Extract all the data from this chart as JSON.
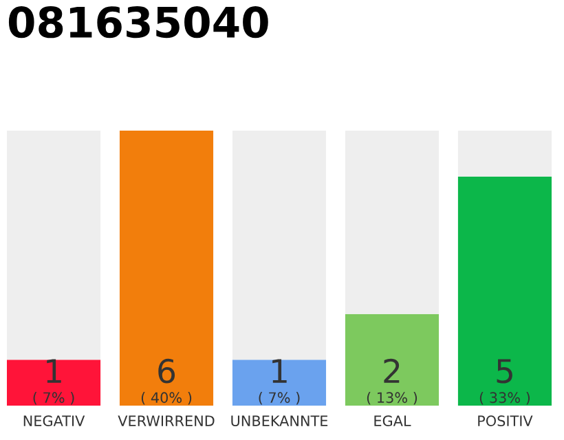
{
  "chart_data": {
    "type": "bar",
    "title": "081635040",
    "stacked": true,
    "categories": [
      "NEGATIV",
      "VERWIRREND",
      "UNBEKANNTE",
      "EGAL",
      "POSITIV"
    ],
    "ylim": [
      0,
      6
    ],
    "series": [
      {
        "values": [
          1,
          6,
          1,
          2,
          5
        ],
        "colors": [
          "#ff1439",
          "#f27e0c",
          "#6aa2ee",
          "#7dc95e",
          "#0cb74a"
        ],
        "value_labels": [
          "1\n( 7% )",
          "6\n( 40% )",
          "1\n( 7% )",
          "2\n( 13% )",
          "5\n( 33% )"
        ]
      },
      {
        "values": [
          5,
          0,
          5,
          4,
          1
        ],
        "color": "#eeeeee"
      }
    ],
    "grid": false,
    "tick_labels": "x"
  }
}
